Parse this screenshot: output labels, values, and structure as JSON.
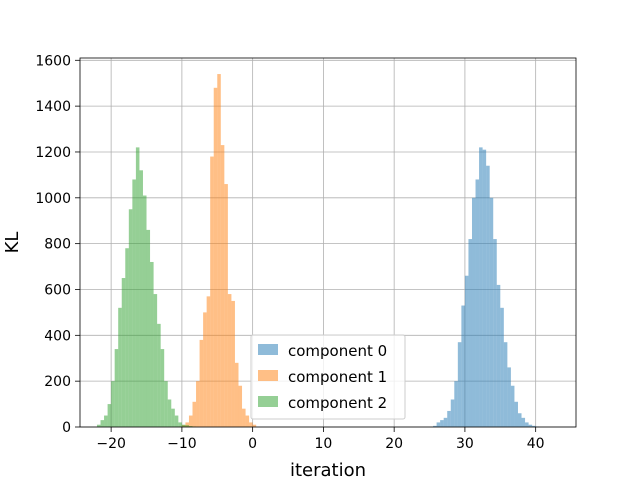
{
  "chart_data": {
    "type": "bar",
    "title": "",
    "xlabel": "iteration",
    "ylabel": "KL",
    "xlim": [
      -24.4,
      45.7
    ],
    "ylim": [
      0,
      1610
    ],
    "xticks": [
      -20,
      -10,
      0,
      10,
      20,
      30,
      40
    ],
    "yticks": [
      0,
      200,
      400,
      600,
      800,
      1000,
      1200,
      1400,
      1600
    ],
    "grid": true,
    "legend_position": "lower center",
    "bar_alpha": 0.5,
    "series": [
      {
        "name": "component 0",
        "color": "#1f77b4",
        "bin_width": 0.5,
        "bin_start": 25.5,
        "counts": [
          5,
          20,
          30,
          40,
          70,
          120,
          200,
          370,
          530,
          660,
          820,
          1000,
          1080,
          1220,
          1210,
          1140,
          1000,
          820,
          620,
          520,
          370,
          260,
          180,
          110,
          60,
          40,
          20,
          10,
          5,
          2
        ]
      },
      {
        "name": "component 1",
        "color": "#ff7f0e",
        "bin_width": 0.5,
        "bin_start": -10.5,
        "counts": [
          2,
          8,
          20,
          50,
          110,
          200,
          380,
          500,
          570,
          1180,
          1480,
          1540,
          1230,
          1060,
          580,
          550,
          280,
          180,
          80,
          50,
          20,
          10
        ]
      },
      {
        "name": "component 2",
        "color": "#2ca02c",
        "bin_width": 0.5,
        "bin_start": -22,
        "counts": [
          10,
          30,
          50,
          100,
          200,
          340,
          520,
          650,
          780,
          950,
          1080,
          1220,
          1120,
          1010,
          860,
          720,
          580,
          450,
          340,
          200,
          120,
          80,
          50,
          20,
          10,
          8,
          4,
          2
        ]
      }
    ]
  }
}
